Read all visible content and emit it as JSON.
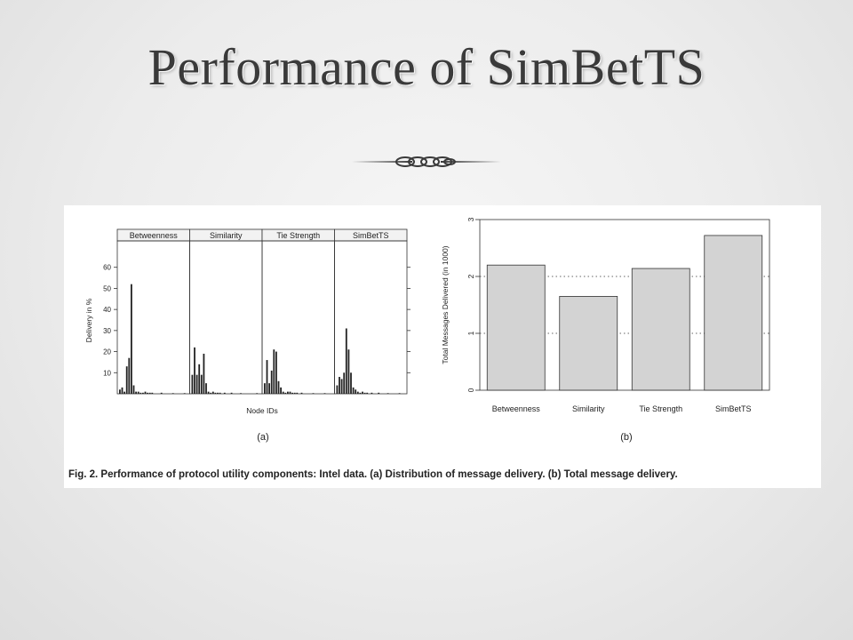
{
  "slide": {
    "title": "Performance of SimBetTS"
  },
  "figure": {
    "caption": "Fig. 2. Performance of protocol utility components: Intel data. (a) Distribution of message delivery. (b) Total message delivery.",
    "label_a": "(a)",
    "label_b": "(b)"
  },
  "chart_data": [
    {
      "type": "bar",
      "id": "a",
      "xlabel": "Node IDs",
      "ylabel": "Delivery in %",
      "ylim": [
        0,
        70
      ],
      "yticks": [
        10,
        20,
        30,
        40,
        50,
        60
      ],
      "grid": false,
      "facets": [
        {
          "name": "Betweenness",
          "values": [
            2,
            3,
            1,
            13,
            17,
            52,
            4,
            1,
            1,
            0.5,
            0.5,
            1,
            0.5,
            0.5,
            0.5,
            0,
            0,
            0,
            0.5,
            0,
            0,
            0,
            0,
            0.3,
            0,
            0,
            0,
            0,
            0.3,
            0
          ]
        },
        {
          "name": "Similarity",
          "values": [
            9,
            22,
            9,
            14,
            9,
            19,
            5,
            1,
            0.5,
            1,
            0.5,
            0.5,
            0.5,
            0,
            0.5,
            0,
            0,
            0.5,
            0,
            0,
            0,
            0.3,
            0,
            0,
            0,
            0,
            0,
            0,
            0.3,
            0
          ]
        },
        {
          "name": "Tie Strength",
          "values": [
            5,
            16,
            5,
            11,
            21,
            20,
            6,
            3,
            1,
            0.5,
            1,
            1,
            0.5,
            0.5,
            0.5,
            0,
            0.5,
            0,
            0,
            0,
            0,
            0.3,
            0,
            0,
            0,
            0,
            0.3,
            0,
            0,
            0
          ]
        },
        {
          "name": "SimBetTS",
          "values": [
            4,
            8,
            7,
            10,
            31,
            21,
            10,
            3,
            2,
            1,
            0.5,
            1,
            0.5,
            0.5,
            0,
            0.5,
            0,
            0,
            0.5,
            0,
            0,
            0,
            0.3,
            0,
            0,
            0,
            0,
            0.3,
            0,
            0
          ]
        }
      ]
    },
    {
      "type": "bar",
      "id": "b",
      "xlabel": "",
      "ylabel": "Total Messages Delivered (in 1000)",
      "ylim": [
        0,
        3
      ],
      "yticks": [
        0,
        1,
        2,
        3
      ],
      "grid": "dotted horizontal at 1 and 2",
      "categories": [
        "Betweenness",
        "Similarity",
        "Tie Strength",
        "SimBetTS"
      ],
      "values": [
        2.2,
        1.65,
        2.14,
        2.72
      ],
      "bar_color": "#d3d3d3"
    }
  ]
}
